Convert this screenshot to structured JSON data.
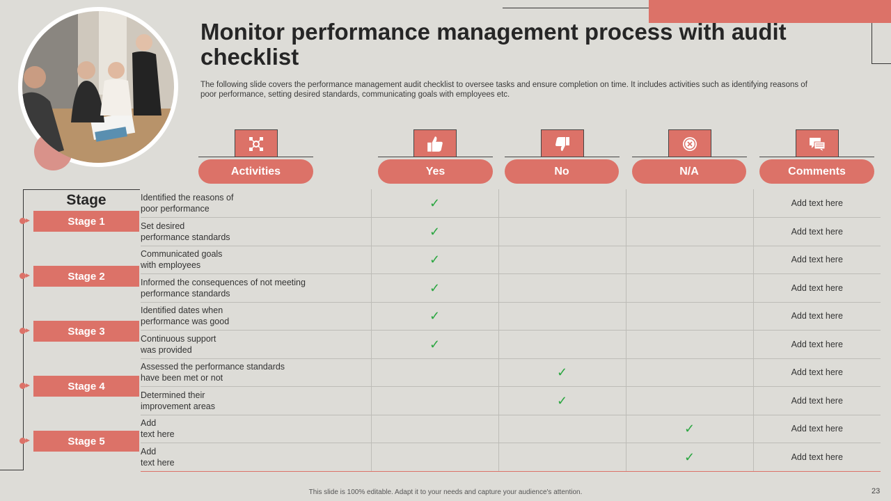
{
  "title": "Monitor performance management process with audit checklist",
  "description": "The following slide covers the performance management audit checklist to oversee tasks and ensure completion on time. It includes activities such as identifying reasons of poor performance, setting desired standards, communicating goals with employees etc.",
  "columns": [
    {
      "label": "Activities",
      "icon": "network-icon"
    },
    {
      "label": "Yes",
      "icon": "thumbs-up-icon"
    },
    {
      "label": "No",
      "icon": "thumbs-down-icon"
    },
    {
      "label": "N/A",
      "icon": "close-circle-icon"
    },
    {
      "label": "Comments",
      "icon": "chat-icon"
    }
  ],
  "stage_header": "Stage",
  "stages": [
    "Stage 1",
    "Stage 2",
    "Stage 3",
    "Stage 4",
    "Stage 5"
  ],
  "rows": [
    {
      "activity_line1": "Identified  the reasons  of",
      "activity_line2": "poor  performance",
      "status": "yes",
      "comment": "Add text here"
    },
    {
      "activity_line1": "Set desired",
      "activity_line2": "performance  standards",
      "status": "yes",
      "comment": "Add text here"
    },
    {
      "activity_line1": "Communicated  goals",
      "activity_line2": "with  employees",
      "status": "yes",
      "comment": "Add text here"
    },
    {
      "activity_line1": "Informed  the consequences  of not meeting",
      "activity_line2": "performance  standards",
      "status": "yes",
      "comment": "Add text here"
    },
    {
      "activity_line1": "Identified  dates  when",
      "activity_line2": "performance  was good",
      "status": "yes",
      "comment": "Add text here"
    },
    {
      "activity_line1": "Continuous  support",
      "activity_line2": "was provided",
      "status": "yes",
      "comment": "Add text here"
    },
    {
      "activity_line1": "Assessed the performance  standards",
      "activity_line2": "have  been  met or not",
      "status": "no",
      "comment": "Add text here"
    },
    {
      "activity_line1": "Determined  their",
      "activity_line2": "improvement  areas",
      "status": "no",
      "comment": "Add text here"
    },
    {
      "activity_line1": "Add",
      "activity_line2": "text here",
      "status": "na",
      "comment": "Add text here"
    },
    {
      "activity_line1": "Add",
      "activity_line2": "text here",
      "status": "na",
      "comment": "Add text here"
    }
  ],
  "check_mark": "✓",
  "footer": "This slide is 100% editable.  Adapt it to your needs and capture your audience's attention.",
  "page_number": "23",
  "colors": {
    "accent": "#dc7268",
    "check": "#2aa640",
    "background": "#dddcd7"
  }
}
